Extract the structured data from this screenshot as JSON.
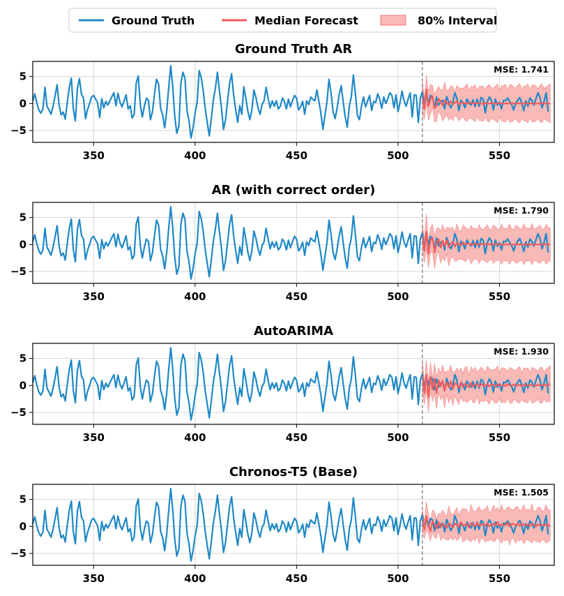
{
  "legend": {
    "ground_truth": "Ground Truth",
    "median": "Median Forecast",
    "interval": "80% Interval",
    "position": "top-center"
  },
  "colors": {
    "truth": "#1f88c6",
    "median": "#f25c5c",
    "band": "#f8b9b7",
    "split": "#888888",
    "grid": "#d6d6d6"
  },
  "chart_data": {
    "type": "line",
    "x_range": [
      320,
      577
    ],
    "y_range": [
      -7.2,
      7.8
    ],
    "x_ticks": [
      350,
      400,
      450,
      500,
      550
    ],
    "y_ticks": [
      5,
      0,
      -5
    ],
    "forecast_start": 512,
    "ground_truth": {
      "name": "Ground Truth",
      "x_start": 320,
      "values": [
        0.5,
        1.8,
        0.1,
        -1.2,
        -1.8,
        -1.0,
        3.0,
        -0.5,
        -1.2,
        -2.0,
        -0.5,
        1.4,
        3.5,
        -0.3,
        -2.1,
        -1.6,
        -2.9,
        0.2,
        3.0,
        4.7,
        -1.0,
        -3.2,
        2.8,
        4.6,
        1.7,
        1.0,
        -2.8,
        -1.1,
        0.0,
        1.2,
        1.5,
        0.8,
        0.1,
        -2.6,
        0.9,
        -0.8,
        0.4,
        -0.3,
        0.5,
        1.3,
        2.0,
        -0.4,
        1.9,
        0.2,
        -0.6,
        0.5,
        1.6,
        -1.0,
        -0.4,
        -2.7,
        -2.0,
        3.8,
        5.1,
        -0.3,
        -2.5,
        -0.5,
        1.0,
        0.6,
        -3.0,
        -1.5,
        1.7,
        4.5,
        3.6,
        -0.9,
        -2.1,
        -4.5,
        -1.5,
        3.0,
        7.0,
        3.0,
        -2.4,
        -5.5,
        -4.2,
        3.8,
        5.8,
        4.7,
        -1.2,
        -3.2,
        -6.4,
        -4.5,
        -1.8,
        0.2,
        6.1,
        4.8,
        2.4,
        -1.0,
        -3.5,
        -6.0,
        -2.8,
        0.6,
        2.8,
        5.8,
        2.3,
        -0.8,
        -4.8,
        -3.0,
        0.4,
        3.7,
        5.5,
        1.6,
        -1.2,
        -3.5,
        -0.4,
        -2.0,
        3.1,
        1.0,
        -1.4,
        -3.0,
        -1.2,
        2.5,
        1.1,
        -0.8,
        -2.0,
        -0.2,
        0.5,
        3.0,
        1.0,
        -0.8,
        0.5,
        -0.5,
        0.5,
        -1.0,
        -0.5,
        1.0,
        0.4,
        -1.0,
        0.8,
        -0.6,
        0.5,
        1.5,
        1.0,
        -1.2,
        -0.6,
        0.4,
        -2.0,
        0.5,
        -0.2,
        1.2,
        0.8,
        0.5,
        2.5,
        0.4,
        -1.8,
        -4.8,
        -2.2,
        0.3,
        4.5,
        2.0,
        -1.5,
        -2.8,
        -0.8,
        1.6,
        3.3,
        0.3,
        -2.5,
        -4.4,
        -0.5,
        1.2,
        5.3,
        1.8,
        -2.3,
        -3.0,
        -0.5,
        1.2,
        -0.6,
        0.4,
        1.5,
        -1.3,
        0.4,
        0.2,
        1.8,
        0.8,
        -0.9,
        1.2,
        0.0,
        0.9,
        2.0,
        1.5,
        -0.8,
        1.6,
        -1.5,
        0.2,
        2.3,
        0.5,
        -0.5,
        0.8,
        2.0,
        -2.5,
        1.6,
        1.5,
        -3.5,
        1.0,
        2.2,
        -0.5,
        1.5,
        0.0,
        1.5,
        1.2,
        -0.8,
        1.2,
        -0.3,
        0.4,
        0.6,
        -1.0,
        1.3,
        0.2,
        -0.8,
        0.0,
        2.0,
        1.0,
        -1.3,
        0.6,
        0.2,
        -0.8,
        0.8,
        0.2,
        -0.3,
        0.7,
        -0.6,
        0.8,
        -0.5,
        1.1,
        0.8,
        -1.7,
        0.3,
        1.2,
        0.6,
        -1.2,
        0.8,
        -0.3,
        0.3,
        -1.0,
        0.6,
        0.5,
        1.0,
        0.4,
        -0.2,
        -1.2,
        0.0,
        0.6,
        1.1,
        0.1,
        -1.3,
        0.5,
        -0.5,
        1.0,
        0.6,
        -0.3,
        0.9,
        2.0,
        1.1,
        -0.8,
        0.4,
        2.0,
        -1.5
      ]
    },
    "panels": [
      {
        "title": "Ground Truth AR",
        "mse": "MSE: 1.741",
        "median": [
          1.2,
          -1.0,
          2.6,
          -0.5,
          0.8,
          1.4,
          -0.9,
          -0.4,
          0.9,
          0.3,
          -0.4,
          0.6,
          0.2,
          -0.3,
          0.4,
          -0.1,
          0.1,
          0.4,
          -0.2,
          0.1,
          0.2,
          0.0,
          0.1,
          -0.1,
          0.2,
          0.0,
          0.0,
          0.1,
          0.0,
          0.0,
          -0.1,
          0.1,
          0.0,
          0.0,
          0.1,
          0.0,
          0.0,
          0.0,
          0.1,
          0.0,
          0.0,
          0.0,
          0.0,
          0.0,
          0.0,
          0.0,
          0.0,
          0.0,
          0.0,
          0.0,
          0.0,
          0.0,
          0.0,
          0.0,
          0.0,
          0.0,
          0.0,
          0.0,
          0.0,
          0.0,
          0.0,
          0.0,
          0.0,
          0.0
        ],
        "spread": [
          2.5,
          2.8,
          3.0,
          3.1,
          3.2,
          3.2,
          3.2
        ]
      },
      {
        "title": "AR (with correct order)",
        "mse": "MSE: 1.790",
        "median": [
          1.5,
          -1.2,
          2.4,
          -1.8,
          0.8,
          1.2,
          -1.5,
          0.4,
          1.0,
          -0.6,
          0.7,
          -0.3,
          0.8,
          -0.5,
          0.2,
          0.5,
          -0.4,
          0.3,
          0.1,
          -0.2,
          0.4,
          0.0,
          0.1,
          0.2,
          -0.1,
          0.0,
          0.2,
          0.0,
          0.0,
          0.1,
          0.0,
          0.0,
          0.1,
          0.0,
          0.0,
          0.0,
          0.1,
          0.0,
          0.0,
          0.0,
          0.0,
          0.0,
          0.0,
          0.0,
          0.0,
          0.0,
          0.0,
          0.0,
          0.0,
          0.0,
          0.0,
          0.0,
          0.0,
          0.0,
          0.0,
          0.0,
          0.0,
          0.0,
          0.0,
          0.0,
          0.0,
          0.0,
          0.0,
          0.0
        ],
        "spread": [
          2.6,
          2.9,
          3.0,
          3.1,
          3.2,
          3.2,
          3.2
        ]
      },
      {
        "title": "AutoARIMA",
        "mse": "MSE: 1.930",
        "median": [
          1.8,
          -1.5,
          2.0,
          -2.2,
          1.6,
          -0.8,
          1.3,
          -1.4,
          1.0,
          -0.2,
          0.9,
          -1.0,
          0.6,
          -0.3,
          0.8,
          -0.7,
          0.4,
          0.2,
          -0.5,
          0.6,
          -0.3,
          0.3,
          0.1,
          -0.4,
          0.5,
          -0.2,
          0.1,
          0.3,
          -0.3,
          0.3,
          0.0,
          -0.1,
          0.3,
          -0.2,
          0.2,
          0.1,
          -0.2,
          0.2,
          0.0,
          0.0,
          0.1,
          -0.1,
          0.2,
          0.0,
          -0.1,
          0.2,
          0.0,
          0.0,
          0.1,
          -0.1,
          0.1,
          0.0,
          0.0,
          0.1,
          0.0,
          0.0,
          0.0,
          0.1,
          0.0,
          0.0,
          0.1,
          0.0,
          0.1,
          0.3
        ],
        "spread": [
          2.6,
          2.8,
          2.9,
          3.0,
          3.0,
          3.0,
          3.0
        ]
      },
      {
        "title": "Chronos-T5 (Base)",
        "mse": "MSE: 1.505",
        "median": [
          1.3,
          -0.6,
          1.9,
          0.4,
          -0.9,
          1.0,
          0.3,
          -0.4,
          0.8,
          -0.2,
          0.5,
          0.1,
          -0.3,
          0.6,
          0.3,
          -0.2,
          0.5,
          0.4,
          -0.1,
          0.8,
          0.2,
          0.3,
          0.5,
          -0.2,
          0.6,
          0.4,
          0.0,
          0.7,
          0.2,
          0.3,
          0.5,
          0.1,
          0.6,
          0.0,
          0.3,
          0.5,
          0.2,
          0.8,
          0.1,
          0.4,
          0.3,
          0.2,
          0.7,
          0.0,
          0.5,
          0.4,
          0.2,
          0.6,
          0.1,
          0.5,
          0.3,
          0.2,
          0.4,
          0.1,
          0.5,
          0.3,
          0.0,
          0.4,
          0.2,
          0.3,
          0.2,
          0.4,
          0.1,
          0.3
        ],
        "spread": [
          2.0,
          2.5,
          2.8,
          2.9,
          3.0,
          3.0,
          3.0
        ]
      }
    ]
  }
}
